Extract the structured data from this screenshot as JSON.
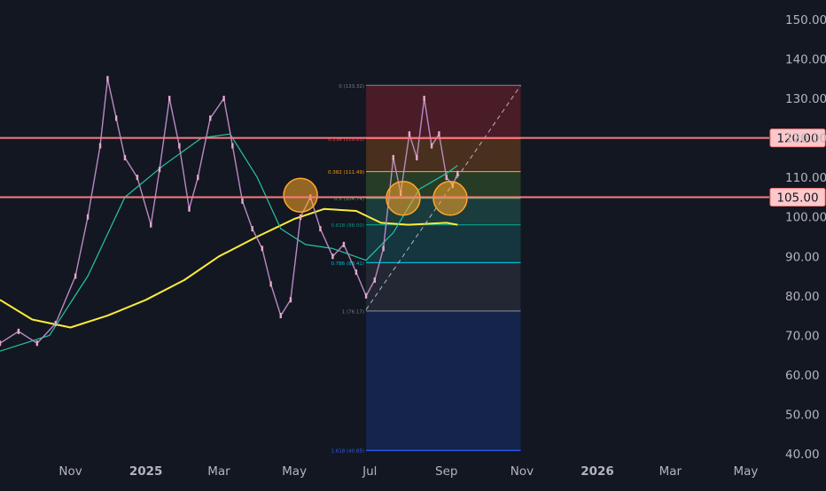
{
  "chart_data": {
    "type": "candlestick",
    "title": "",
    "xlabel": "",
    "ylabel": "",
    "ylim": [
      40,
      150
    ],
    "y_ticks": [
      "150.00",
      "140.00",
      "130.00",
      "120.00",
      "110.00",
      "100.00",
      "90.00",
      "80.00",
      "70.00",
      "60.00",
      "50.00",
      "40.00"
    ],
    "y_tick_values": [
      150,
      140,
      130,
      120,
      110,
      100,
      90,
      80,
      70,
      60,
      50,
      40
    ],
    "x_ticks": [
      {
        "label": "Nov",
        "date": "2024-11-01"
      },
      {
        "label": "2025",
        "date": "2025-01-01",
        "bold": true
      },
      {
        "label": "Mar",
        "date": "2025-03-01"
      },
      {
        "label": "May",
        "date": "2025-05-01"
      },
      {
        "label": "Jul",
        "date": "2025-07-01"
      },
      {
        "label": "Sep",
        "date": "2025-09-01"
      },
      {
        "label": "Nov",
        "date": "2025-11-01"
      },
      {
        "label": "2026",
        "date": "2026-01-01",
        "bold": true
      },
      {
        "label": "Mar",
        "date": "2026-03-01"
      },
      {
        "label": "May",
        "date": "2026-05-01"
      }
    ],
    "x_range": [
      "2024-09-05",
      "2026-05-20"
    ],
    "grid": false,
    "horizontal_levels": [
      {
        "value": 120,
        "label": "120.00",
        "color": "#f77c80"
      },
      {
        "value": 105,
        "label": "105.00",
        "color": "#f77c80"
      }
    ],
    "fibonacci": {
      "start_date": "2025-06-28",
      "end_date": "2025-10-31",
      "levels": [
        {
          "ratio": "0",
          "value": 133.32,
          "label": "0 (133.32)",
          "color": "#787b86",
          "fill": "#5c1f2b"
        },
        {
          "ratio": "0.236",
          "value": 119.83,
          "label": "0.236 (119.83)",
          "color": "#f23645",
          "fill": "#5c3a1e"
        },
        {
          "ratio": "0.382",
          "value": 111.49,
          "label": "0.382 (111.49)",
          "color": "#ff9800",
          "fill": "#2f4a2a"
        },
        {
          "ratio": "0.5",
          "value": 104.74,
          "label": "0.5 (104.74)",
          "color": "#4caf50",
          "fill": "#1d4a45"
        },
        {
          "ratio": "0.618",
          "value": 98.0,
          "label": "0.618 (98.00)",
          "color": "#089981",
          "fill": "#17404a"
        },
        {
          "ratio": "0.786",
          "value": 88.41,
          "label": "0.786 (88.41)",
          "color": "#00bcd4",
          "fill": "#2a2e39"
        },
        {
          "ratio": "1",
          "value": 76.17,
          "label": "1 (76.17)",
          "color": "#787b86",
          "fill": "#15295a"
        },
        {
          "ratio": "1.618",
          "value": 40.85,
          "label": "1.618 (40.85)",
          "color": "#2962ff",
          "fill": ""
        }
      ]
    },
    "trendline": {
      "start": {
        "date": "2025-06-28",
        "value": 76.5
      },
      "end": {
        "date": "2025-10-31",
        "value": 133.3
      },
      "color": "#b2b5be",
      "style": "dashed"
    },
    "highlight_circles": [
      {
        "date": "2025-05-06",
        "value": 105.5,
        "color": "#ffa726"
      },
      {
        "date": "2025-07-28",
        "value": 104.7,
        "color": "#ffa726"
      },
      {
        "date": "2025-09-04",
        "value": 104.7,
        "color": "#ffa726"
      }
    ],
    "series": [
      {
        "kind": "moving_average",
        "color": "#ffeb3b",
        "points": [
          {
            "date": "2024-09-05",
            "value": 79
          },
          {
            "date": "2024-10-01",
            "value": 74
          },
          {
            "date": "2024-11-01",
            "value": 72
          },
          {
            "date": "2024-12-01",
            "value": 75
          },
          {
            "date": "2025-01-01",
            "value": 79
          },
          {
            "date": "2025-02-01",
            "value": 84
          },
          {
            "date": "2025-03-01",
            "value": 90
          },
          {
            "date": "2025-04-01",
            "value": 95
          },
          {
            "date": "2025-05-01",
            "value": 99.5
          },
          {
            "date": "2025-05-25",
            "value": 102
          },
          {
            "date": "2025-06-20",
            "value": 101.5
          },
          {
            "date": "2025-07-10",
            "value": 98.5
          },
          {
            "date": "2025-08-01",
            "value": 98
          },
          {
            "date": "2025-09-01",
            "value": 98.5
          },
          {
            "date": "2025-09-10",
            "value": 98
          }
        ]
      },
      {
        "kind": "moving_average",
        "color": "#26c6a2",
        "points": [
          {
            "date": "2024-09-05",
            "value": 66
          },
          {
            "date": "2024-10-15",
            "value": 70
          },
          {
            "date": "2024-11-15",
            "value": 85
          },
          {
            "date": "2024-12-15",
            "value": 105
          },
          {
            "date": "2025-01-15",
            "value": 113
          },
          {
            "date": "2025-02-15",
            "value": 120
          },
          {
            "date": "2025-03-10",
            "value": 121
          },
          {
            "date": "2025-04-01",
            "value": 110
          },
          {
            "date": "2025-04-20",
            "value": 97
          },
          {
            "date": "2025-05-10",
            "value": 93
          },
          {
            "date": "2025-06-01",
            "value": 92
          },
          {
            "date": "2025-06-28",
            "value": 89
          },
          {
            "date": "2025-07-20",
            "value": 96
          },
          {
            "date": "2025-08-10",
            "value": 107
          },
          {
            "date": "2025-09-01",
            "value": 111
          },
          {
            "date": "2025-09-10",
            "value": 113
          }
        ]
      },
      {
        "kind": "price",
        "color": "#b98ac4",
        "points": [
          {
            "date": "2024-09-05",
            "value": 68
          },
          {
            "date": "2024-09-20",
            "value": 71
          },
          {
            "date": "2024-10-05",
            "value": 68
          },
          {
            "date": "2024-10-20",
            "value": 73
          },
          {
            "date": "2024-11-05",
            "value": 85
          },
          {
            "date": "2024-11-15",
            "value": 100
          },
          {
            "date": "2024-11-25",
            "value": 118
          },
          {
            "date": "2024-12-01",
            "value": 135
          },
          {
            "date": "2024-12-08",
            "value": 125
          },
          {
            "date": "2024-12-15",
            "value": 115
          },
          {
            "date": "2024-12-25",
            "value": 110
          },
          {
            "date": "2025-01-05",
            "value": 98
          },
          {
            "date": "2025-01-12",
            "value": 112
          },
          {
            "date": "2025-01-20",
            "value": 130
          },
          {
            "date": "2025-01-28",
            "value": 118
          },
          {
            "date": "2025-02-05",
            "value": 102
          },
          {
            "date": "2025-02-12",
            "value": 110
          },
          {
            "date": "2025-02-22",
            "value": 125
          },
          {
            "date": "2025-03-05",
            "value": 130
          },
          {
            "date": "2025-03-12",
            "value": 118
          },
          {
            "date": "2025-03-20",
            "value": 104
          },
          {
            "date": "2025-03-28",
            "value": 97
          },
          {
            "date": "2025-04-05",
            "value": 92
          },
          {
            "date": "2025-04-12",
            "value": 83
          },
          {
            "date": "2025-04-20",
            "value": 75
          },
          {
            "date": "2025-04-28",
            "value": 79
          },
          {
            "date": "2025-05-06",
            "value": 100
          },
          {
            "date": "2025-05-14",
            "value": 105
          },
          {
            "date": "2025-05-22",
            "value": 97
          },
          {
            "date": "2025-06-01",
            "value": 90
          },
          {
            "date": "2025-06-10",
            "value": 93
          },
          {
            "date": "2025-06-20",
            "value": 86
          },
          {
            "date": "2025-06-28",
            "value": 80
          },
          {
            "date": "2025-07-05",
            "value": 84
          },
          {
            "date": "2025-07-12",
            "value": 92
          },
          {
            "date": "2025-07-20",
            "value": 115
          },
          {
            "date": "2025-07-26",
            "value": 106
          },
          {
            "date": "2025-08-02",
            "value": 121
          },
          {
            "date": "2025-08-08",
            "value": 115
          },
          {
            "date": "2025-08-14",
            "value": 130
          },
          {
            "date": "2025-08-20",
            "value": 118
          },
          {
            "date": "2025-08-26",
            "value": 121
          },
          {
            "date": "2025-09-01",
            "value": 110
          },
          {
            "date": "2025-09-06",
            "value": 108
          },
          {
            "date": "2025-09-10",
            "value": 111
          }
        ]
      }
    ]
  }
}
